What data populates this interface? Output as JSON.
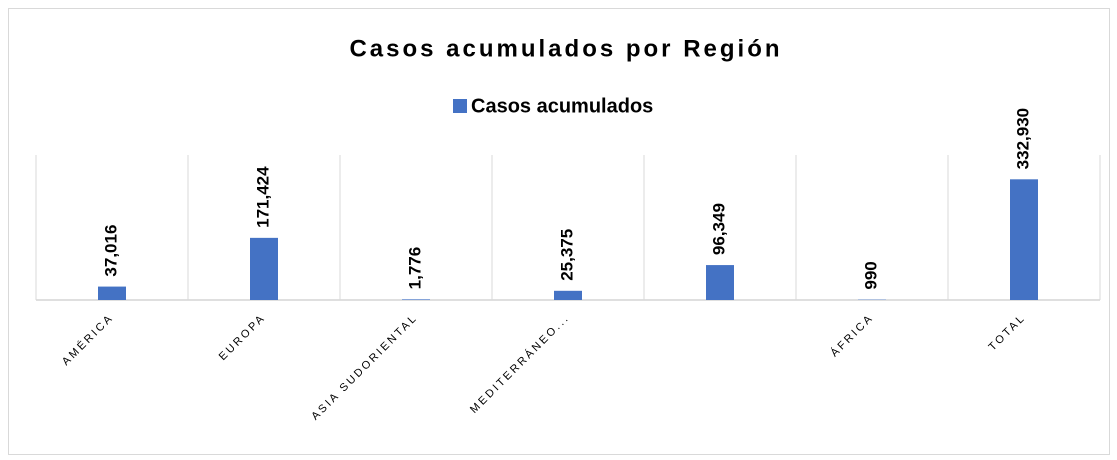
{
  "chart_data": {
    "type": "bar",
    "title": "Casos acumulados por Región",
    "categories": [
      "AMÉRICA",
      "EUROPA",
      "ASIA SUDORIENTAL",
      "MEDITERRÁNEO...",
      null,
      "ÁFRICA",
      "TOTAL"
    ],
    "series": [
      {
        "name": "Casos acumulados",
        "color": "#4472c4",
        "values": [
          37016,
          171424,
          1776,
          25375,
          96349,
          990,
          332930
        ],
        "value_labels": [
          "37,016",
          "171,424",
          "1,776",
          "25,375",
          "96,349",
          "990",
          "332,930"
        ]
      }
    ],
    "ylim": [
      0,
      400000
    ],
    "legend": "top",
    "grid": true
  }
}
